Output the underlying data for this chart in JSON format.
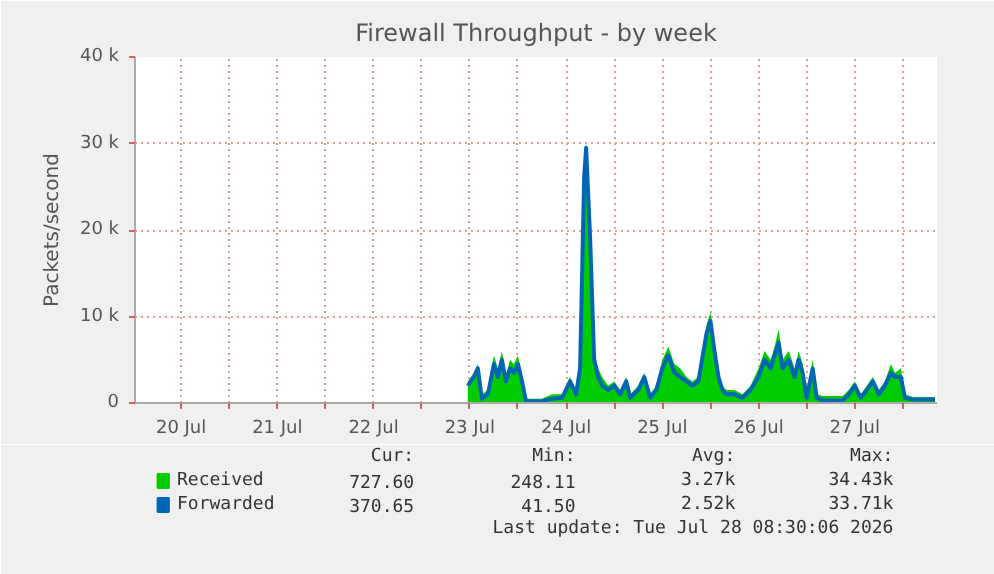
{
  "chart_data": {
    "type": "area",
    "title": "Firewall Throughput - by week",
    "ylabel": "Packets/second",
    "x": [
      "2026-07-23T11:30",
      "2026-07-23T13:00",
      "2026-07-23T14:00",
      "2026-07-23T15:00",
      "2026-07-23T16:30",
      "2026-07-23T18:00",
      "2026-07-23T19:00",
      "2026-07-23T20:00",
      "2026-07-23T21:00",
      "2026-07-23T22:00",
      "2026-07-23T23:00",
      "2026-07-24T00:00",
      "2026-07-24T01:00",
      "2026-07-24T02:00",
      "2026-07-24T06:00",
      "2026-07-24T08:30",
      "2026-07-24T11:00",
      "2026-07-24T13:00",
      "2026-07-24T14:30",
      "2026-07-24T15:30",
      "2026-07-24T16:30",
      "2026-07-24T17:00",
      "2026-07-24T18:00",
      "2026-07-24T19:00",
      "2026-07-24T20:00",
      "2026-07-24T21:00",
      "2026-07-24T22:30",
      "2026-07-25T00:00",
      "2026-07-25T01:30",
      "2026-07-25T03:00",
      "2026-07-25T04:00",
      "2026-07-25T06:00",
      "2026-07-25T07:30",
      "2026-07-25T09:00",
      "2026-07-25T10:30",
      "2026-07-25T12:00",
      "2026-07-25T13:30",
      "2026-07-25T15:00",
      "2026-07-25T16:30",
      "2026-07-25T18:00",
      "2026-07-25T19:30",
      "2026-07-25T21:00",
      "2026-07-25T23:00",
      "2026-07-26T00:00",
      "2026-07-26T01:00",
      "2026-07-26T02:00",
      "2026-07-26T03:00",
      "2026-07-26T04:00",
      "2026-07-26T06:00",
      "2026-07-26T08:00",
      "2026-07-26T10:00",
      "2026-07-26T12:00",
      "2026-07-26T13:30",
      "2026-07-26T15:00",
      "2026-07-26T16:00",
      "2026-07-26T17:00",
      "2026-07-26T18:00",
      "2026-07-26T19:30",
      "2026-07-26T21:00",
      "2026-07-26T22:00",
      "2026-07-26T23:00",
      "2026-07-27T00:00",
      "2026-07-27T01:30",
      "2026-07-27T02:30",
      "2026-07-27T04:00",
      "2026-07-27T09:00",
      "2026-07-27T10:30",
      "2026-07-27T12:00",
      "2026-07-27T13:30",
      "2026-07-27T15:00",
      "2026-07-27T16:30",
      "2026-07-27T18:00",
      "2026-07-27T19:30",
      "2026-07-27T21:00",
      "2026-07-27T22:00",
      "2026-07-27T23:30",
      "2026-07-28T00:30",
      "2026-07-28T02:30",
      "2026-07-28T08:00"
    ],
    "series": [
      {
        "name": "Received",
        "color": "#00cc00",
        "values": [
          2500,
          3500,
          4500,
          1000,
          1500,
          5500,
          4000,
          6000,
          3000,
          5000,
          4500,
          5500,
          3000,
          500,
          500,
          1000,
          1000,
          3000,
          1500,
          5000,
          27000,
          30000,
          20000,
          6000,
          4000,
          3000,
          2000,
          2500,
          1500,
          3000,
          1000,
          2000,
          3500,
          1000,
          2000,
          5000,
          6500,
          4500,
          4000,
          3000,
          2500,
          3000,
          9000,
          10500,
          7000,
          3500,
          2000,
          1500,
          1500,
          1000,
          2000,
          4000,
          6000,
          5000,
          6500,
          8500,
          5000,
          6000,
          4000,
          6000,
          4500,
          1000,
          5000,
          1000,
          800,
          800,
          1500,
          2500,
          1000,
          2000,
          3000,
          1500,
          2500,
          4500,
          3500,
          4000,
          1000,
          700,
          700
        ]
      },
      {
        "name": "Forwarded",
        "color": "#0066b3",
        "type": "line",
        "values": [
          2000,
          3000,
          4000,
          500,
          1000,
          4500,
          3000,
          5000,
          2500,
          4000,
          3500,
          4500,
          2500,
          200,
          200,
          500,
          600,
          2500,
          1000,
          4000,
          26000,
          29500,
          19000,
          5000,
          3000,
          2000,
          1500,
          2000,
          1000,
          2500,
          600,
          1500,
          3000,
          600,
          1500,
          4000,
          5500,
          3500,
          3000,
          2500,
          2000,
          2500,
          8000,
          9500,
          6000,
          3000,
          1500,
          1000,
          1000,
          600,
          1500,
          3000,
          5000,
          4000,
          5500,
          7000,
          4000,
          5000,
          3000,
          5000,
          3500,
          600,
          4000,
          600,
          300,
          300,
          1000,
          2000,
          600,
          1500,
          2500,
          1000,
          2000,
          3500,
          3000,
          3000,
          600,
          400,
          400
        ]
      }
    ],
    "xlim": [
      "2026-07-20T00:30",
      "2026-07-28T08:30"
    ],
    "xticks": [
      {
        "value": "2026-07-20T12:00",
        "label": "20 Jul"
      },
      {
        "value": "2026-07-21T00:00",
        "label": null
      },
      {
        "value": "2026-07-21T12:00",
        "label": "21 Jul"
      },
      {
        "value": "2026-07-22T00:00",
        "label": null
      },
      {
        "value": "2026-07-22T12:00",
        "label": "22 Jul"
      },
      {
        "value": "2026-07-23T00:00",
        "label": null
      },
      {
        "value": "2026-07-23T12:00",
        "label": "23 Jul"
      },
      {
        "value": "2026-07-24T00:00",
        "label": null
      },
      {
        "value": "2026-07-24T12:00",
        "label": "24 Jul"
      },
      {
        "value": "2026-07-25T00:00",
        "label": null
      },
      {
        "value": "2026-07-25T12:00",
        "label": "25 Jul"
      },
      {
        "value": "2026-07-26T00:00",
        "label": null
      },
      {
        "value": "2026-07-26T12:00",
        "label": "26 Jul"
      },
      {
        "value": "2026-07-27T00:00",
        "label": null
      },
      {
        "value": "2026-07-27T12:00",
        "label": "27 Jul"
      },
      {
        "value": "2026-07-28T00:00",
        "label": null
      }
    ],
    "ylim": [
      0,
      40000
    ],
    "yticks": [
      {
        "value": 0,
        "label": "0"
      },
      {
        "value": 10000,
        "label": "10 k"
      },
      {
        "value": 20000,
        "label": "20 k"
      },
      {
        "value": 30000,
        "label": "30 k"
      },
      {
        "value": 40000,
        "label": "40 k"
      }
    ],
    "grid": true,
    "legend": "bottom",
    "annotations": [
      "Cur:",
      "Min:",
      "Avg:",
      "Max:",
      "727.60",
      "248.11",
      "3.27k",
      "34.43k",
      "370.65",
      "41.50",
      "2.52k",
      "33.71k",
      "Last update: Tue Jul 28 08:30:06 2026"
    ]
  }
}
